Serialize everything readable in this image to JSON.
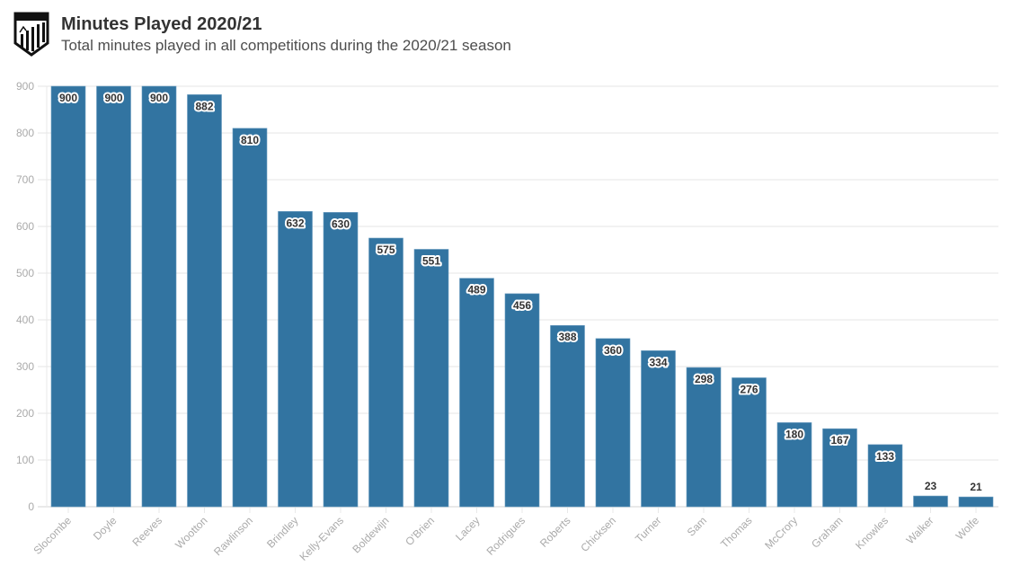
{
  "header": {
    "logo_icon": "club-crest-icon",
    "title": "Minutes Played 2020/21",
    "subtitle": "Total minutes played in all competitions during the 2020/21 season"
  },
  "colors": {
    "bar": "#3274a1",
    "grid": "#e9e9e9",
    "axis_text": "#aaaaaa"
  },
  "chart_data": {
    "type": "bar",
    "title": "Minutes Played 2020/21",
    "subtitle": "Total minutes played in all competitions during the 2020/21 season",
    "xlabel": "",
    "ylabel": "",
    "ylim": [
      0,
      900
    ],
    "yticks": [
      0,
      100,
      200,
      300,
      400,
      500,
      600,
      700,
      800,
      900
    ],
    "grid": true,
    "legend": "none",
    "categories": [
      "Slocombe",
      "Doyle",
      "Reeves",
      "Wootton",
      "Rawlinson",
      "Brindley",
      "Kelly-Evans",
      "Boldewijn",
      "O'Brien",
      "Lacey",
      "Rodrigues",
      "Roberts",
      "Chicksen",
      "Turner",
      "Sam",
      "Thomas",
      "McCrory",
      "Graham",
      "Knowles",
      "Walker",
      "Wolfe"
    ],
    "values": [
      900,
      900,
      900,
      882,
      810,
      632,
      630,
      575,
      551,
      489,
      456,
      388,
      360,
      334,
      298,
      276,
      180,
      167,
      133,
      23,
      21
    ]
  }
}
